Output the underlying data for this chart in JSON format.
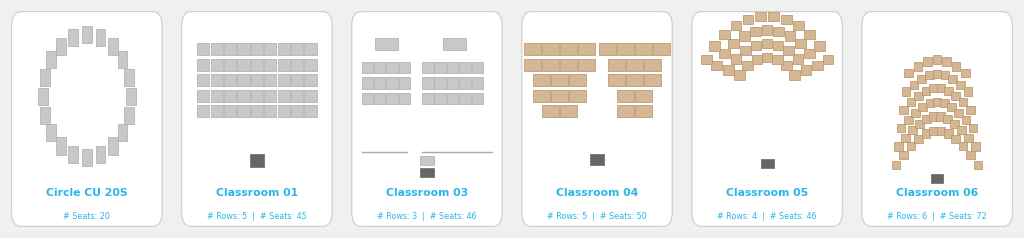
{
  "background_color": "#f0f0f0",
  "card_color": "#ffffff",
  "card_border_color": "#cccccc",
  "title_color": "#29b6e8",
  "subtitle_color": "#29b6e8",
  "seat_gray": "#c8c8c8",
  "seat_tan": "#d4b896",
  "seat_edge_gray": "#aaaaaa",
  "seat_edge_tan": "#b89060",
  "desk_dark": "#666666",
  "cards": [
    {
      "title": "Circle CU 20S",
      "subtitle": "# Seats: 20",
      "layout": "circle"
    },
    {
      "title": "Classroom 01",
      "subtitle": "# Rows: 5  |  # Seats: 45",
      "layout": "classroom01"
    },
    {
      "title": "Classroom 03",
      "subtitle": "# Rows: 3  |  # Seats: 46",
      "layout": "classroom03"
    },
    {
      "title": "Classroom 04",
      "subtitle": "# Rows: 5  |  # Seats: 50",
      "layout": "classroom04"
    },
    {
      "title": "Classroom 05",
      "subtitle": "# Rows: 4  |  # Seats: 46",
      "layout": "classroom05"
    },
    {
      "title": "Classroom 06",
      "subtitle": "# Rows: 6  |  # Seats: 72",
      "layout": "classroom06"
    }
  ]
}
